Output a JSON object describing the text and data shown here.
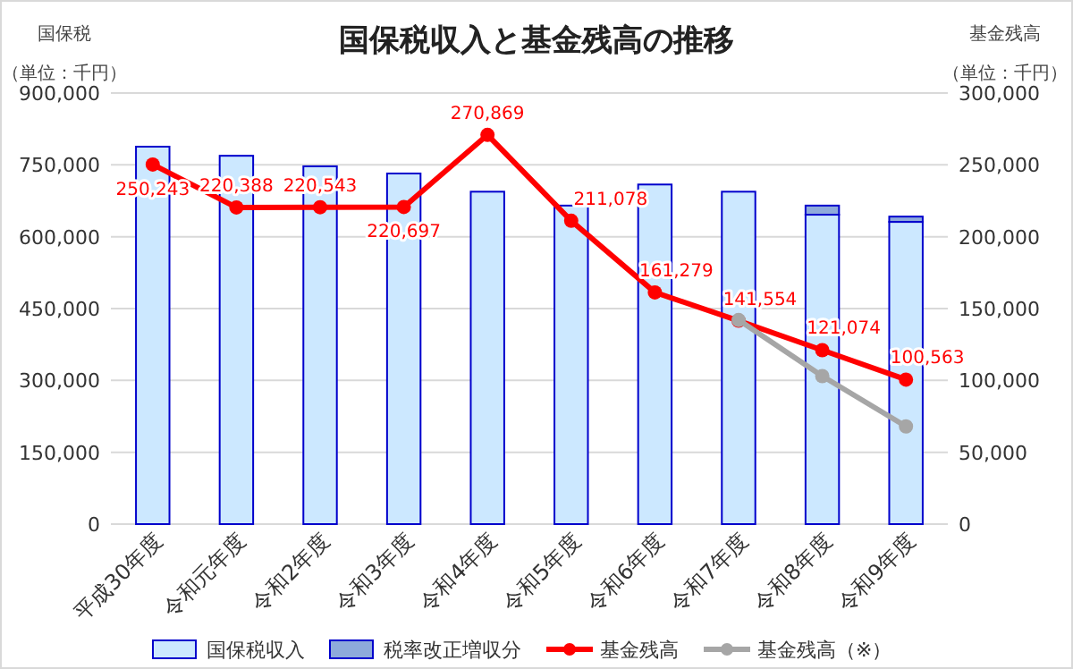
{
  "chart_data": {
    "type": "bar",
    "title": "国保税収入と基金残高の推移",
    "ylabel": "国保税（単位：千円）",
    "y2label": "基金残高（単位：千円）",
    "categories": [
      "平成30年度",
      "令和元年度",
      "令和2年度",
      "令和3年度",
      "令和4年度",
      "令和5年度",
      "令和6年度",
      "令和7年度",
      "令和8年度",
      "令和9年度"
    ],
    "stacked": true,
    "series": [
      {
        "name": "国保税収入",
        "color": "#cce8ff",
        "values": [
          788000,
          769000,
          747000,
          732000,
          694000,
          665000,
          709000,
          694000,
          646000,
          631000
        ]
      },
      {
        "name": "税率改正増収分",
        "color": "#8eaadb",
        "values": [
          null,
          null,
          null,
          null,
          null,
          null,
          null,
          null,
          19000,
          11000
        ]
      },
      {
        "name": "基金残高",
        "type": "line",
        "axis": "y2",
        "color": "#ff0000",
        "marker": "circle",
        "values": [
          250243,
          220388,
          220543,
          220697,
          270869,
          211078,
          161279,
          141554,
          121074,
          100563
        ],
        "value_labels": [
          "250,243",
          "220,388",
          "220,543",
          "220,697",
          "270,869",
          "211,078",
          "161,279",
          "141,554",
          "121,074",
          "100,563"
        ]
      },
      {
        "name": "基金残高（※）",
        "type": "line",
        "axis": "y2",
        "color": "#a6a6a6",
        "marker": "circle",
        "values": [
          null,
          null,
          null,
          null,
          null,
          null,
          null,
          142000,
          103000,
          68000
        ]
      }
    ],
    "ylim": [
      0,
      900000
    ],
    "yticks": [
      {
        "value": 0,
        "label": "0"
      },
      {
        "value": 150000,
        "label": "150,000"
      },
      {
        "value": 300000,
        "label": "300,000"
      },
      {
        "value": 450000,
        "label": "450,000"
      },
      {
        "value": 600000,
        "label": "600,000"
      },
      {
        "value": 750000,
        "label": "750,000"
      },
      {
        "value": 900000,
        "label": "900,000"
      }
    ],
    "y2lim": [
      0,
      300000
    ],
    "y2ticks": [
      {
        "value": 0,
        "label": "0"
      },
      {
        "value": 50000,
        "label": "50,000"
      },
      {
        "value": 100000,
        "label": "100,000"
      },
      {
        "value": 150000,
        "label": "150,000"
      },
      {
        "value": 200000,
        "label": "200,000"
      },
      {
        "value": 250000,
        "label": "250,000"
      },
      {
        "value": 300000,
        "label": "300,000"
      }
    ],
    "grid": "y",
    "legend": "bottom"
  }
}
